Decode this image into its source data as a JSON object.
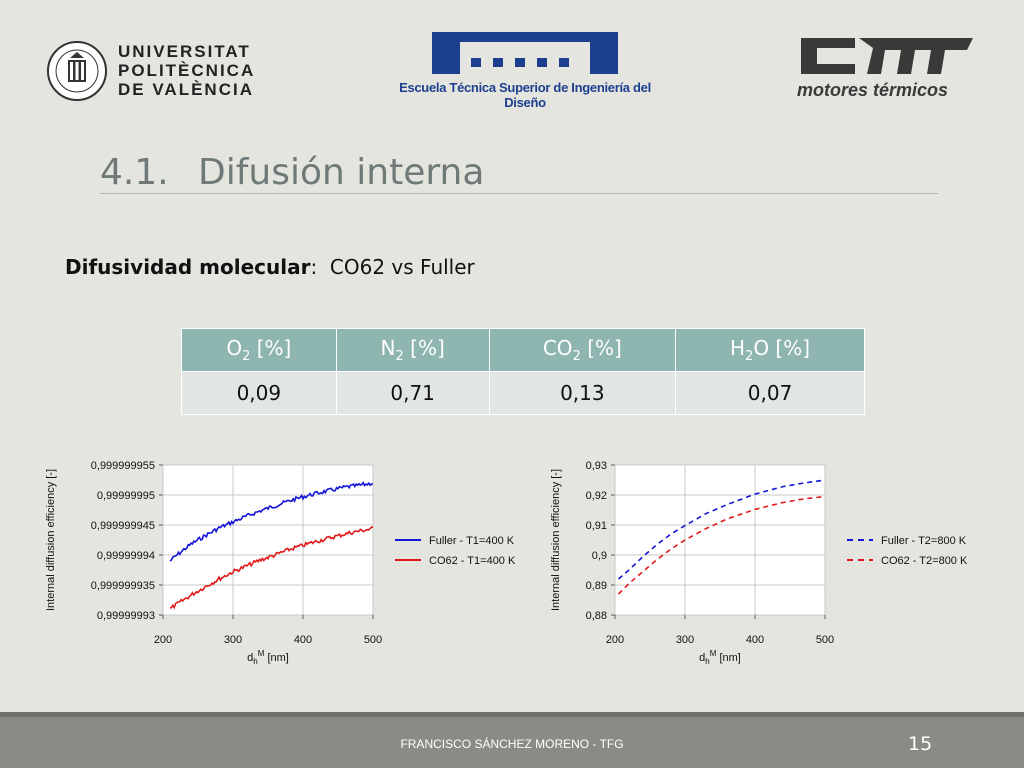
{
  "logos": {
    "upv": {
      "lines": [
        "UNIVERSITAT",
        "POLITÈCNICA",
        "DE VALÈNCIA"
      ],
      "seal_text": "UNIVERSITAT POLITÈCNICA DE VALÈNCIA"
    },
    "etsid": {
      "caption": "Escuela Técnica Superior de Ingeniería del Diseño"
    },
    "cmt": {
      "mark": "cmt",
      "caption": "motores térmicos"
    }
  },
  "title": {
    "number": "4.1.",
    "text": "Difusión interna"
  },
  "subtitle": {
    "bold": "Difusividad molecular",
    "rest": ":  CO62 vs Fuller"
  },
  "table": {
    "headers": [
      {
        "base": "O",
        "sub": "2",
        "suffix": " [%]"
      },
      {
        "base": "N",
        "sub": "2",
        "suffix": " [%]"
      },
      {
        "base": "CO",
        "sub": "2",
        "suffix": " [%]"
      },
      {
        "base": "H",
        "sub": "2",
        "suffix": "O [%]"
      }
    ],
    "values": [
      "0,09",
      "0,71",
      "0,13",
      "0,07"
    ]
  },
  "chart_data": [
    {
      "type": "line",
      "ylabel": "Internal diffusion efficiency [-]",
      "xlabel_base": "d",
      "xlabel_sub": "h",
      "xlabel_sup": "M",
      "xlabel_unit": " [nm]",
      "xlim": [
        200,
        500
      ],
      "xticks": [
        200,
        300,
        400,
        500
      ],
      "xtick_labels": [
        "200",
        "300",
        "400",
        "500"
      ],
      "ylim": [
        0.99999993,
        0.999999955
      ],
      "yticks": [
        0.99999993,
        0.999999935,
        0.99999994,
        0.999999945,
        0.99999995,
        0.999999955
      ],
      "ytick_labels": [
        "0,99999993",
        "0,999999935",
        "0,99999994",
        "0,999999945",
        "0,99999995",
        "0,999999955"
      ],
      "grid": true,
      "legend_position": "right",
      "series": [
        {
          "name": "Fuller - T1=400 K",
          "color": "#1515d8",
          "style": "noisy",
          "x": [
            210,
            220,
            240,
            260,
            280,
            300,
            320,
            340,
            360,
            380,
            400,
            420,
            440,
            460,
            480,
            500
          ],
          "y": [
            0.999999939,
            0.99999994,
            0.9999999418,
            0.9999999432,
            0.9999999445,
            0.9999999455,
            0.9999999465,
            0.9999999474,
            0.9999999482,
            0.999999949,
            0.9999999497,
            0.9999999503,
            0.9999999508,
            0.9999999513,
            0.9999999516,
            0.999999952
          ]
        },
        {
          "name": "CO62 - T1=400 K",
          "color": "#e01a1a",
          "style": "noisy",
          "x": [
            210,
            220,
            240,
            260,
            280,
            300,
            320,
            340,
            360,
            380,
            400,
            420,
            440,
            460,
            480,
            500
          ],
          "y": [
            0.999999931,
            0.9999999318,
            0.9999999333,
            0.9999999347,
            0.999999936,
            0.9999999372,
            0.9999999382,
            0.9999999392,
            0.99999994,
            0.9999999409,
            0.9999999416,
            0.9999999423,
            0.9999999429,
            0.9999999435,
            0.999999944,
            0.9999999444
          ]
        }
      ]
    },
    {
      "type": "line",
      "ylabel": "Internal diffusion efficiency [-]",
      "xlabel_base": "d",
      "xlabel_sub": "h",
      "xlabel_sup": "M",
      "xlabel_unit": " [nm]",
      "xlim": [
        200,
        500
      ],
      "xticks": [
        200,
        300,
        400,
        500
      ],
      "xtick_labels": [
        "200",
        "300",
        "400",
        "500"
      ],
      "ylim": [
        0.88,
        0.93
      ],
      "yticks": [
        0.88,
        0.89,
        0.9,
        0.91,
        0.92,
        0.93
      ],
      "ytick_labels": [
        "0,88",
        "0,89",
        "0,9",
        "0,91",
        "0,92",
        "0,93"
      ],
      "grid": true,
      "legend_position": "right",
      "series": [
        {
          "name": "Fuller - T2=800 K",
          "color": "#1515d8",
          "style": "dashed",
          "x": [
            205,
            220,
            240,
            260,
            280,
            300,
            330,
            360,
            400,
            440,
            470,
            500
          ],
          "y": [
            0.892,
            0.895,
            0.8995,
            0.9035,
            0.907,
            0.9098,
            0.9138,
            0.9168,
            0.9203,
            0.9228,
            0.924,
            0.925
          ]
        },
        {
          "name": "CO62 - T2=800 K",
          "color": "#e01a1a",
          "style": "dashed",
          "x": [
            205,
            220,
            240,
            260,
            280,
            300,
            330,
            360,
            400,
            440,
            470,
            500
          ],
          "y": [
            0.887,
            0.8905,
            0.8945,
            0.8985,
            0.902,
            0.905,
            0.9088,
            0.912,
            0.9152,
            0.9175,
            0.9187,
            0.9195
          ]
        }
      ]
    }
  ],
  "footer": {
    "author": "FRANCISCO SÁNCHEZ MORENO - TFG",
    "page": "15"
  }
}
